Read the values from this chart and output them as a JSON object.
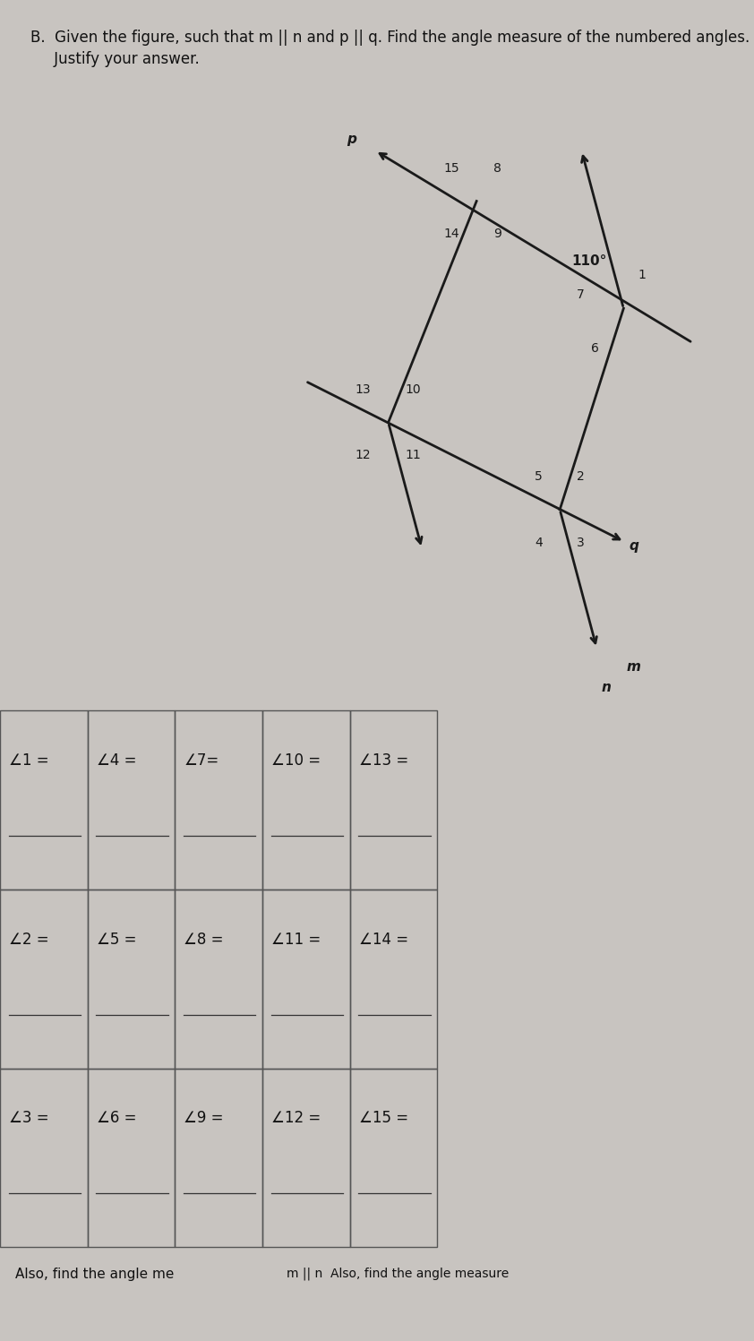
{
  "bg_color": "#c8c4c0",
  "title_line1": "B.  Given the figure, such that m || n and p || q. Find the angle measure of the numbered angles.",
  "title_line2": "     Justify your answer.",
  "angle_110": "110°",
  "line_labels": [
    "p",
    "q",
    "m",
    "n"
  ],
  "table_rows": [
    [
      "∠1 =",
      "∠4 =",
      "∠7=",
      "∠10 =",
      "∠13 ="
    ],
    [
      "∠2 =",
      "∠5 =",
      "∠8 =",
      "∠11 =",
      "∠14 ="
    ],
    [
      "∠3 =",
      "∠6 =",
      "∠9 =",
      "∠12 =",
      "∠15 ="
    ]
  ],
  "footer_left": "Also, find the angle me",
  "footer_right": "m || n  Also, find the angle measure",
  "lc": "#1a1a1a",
  "tc": "#111111"
}
